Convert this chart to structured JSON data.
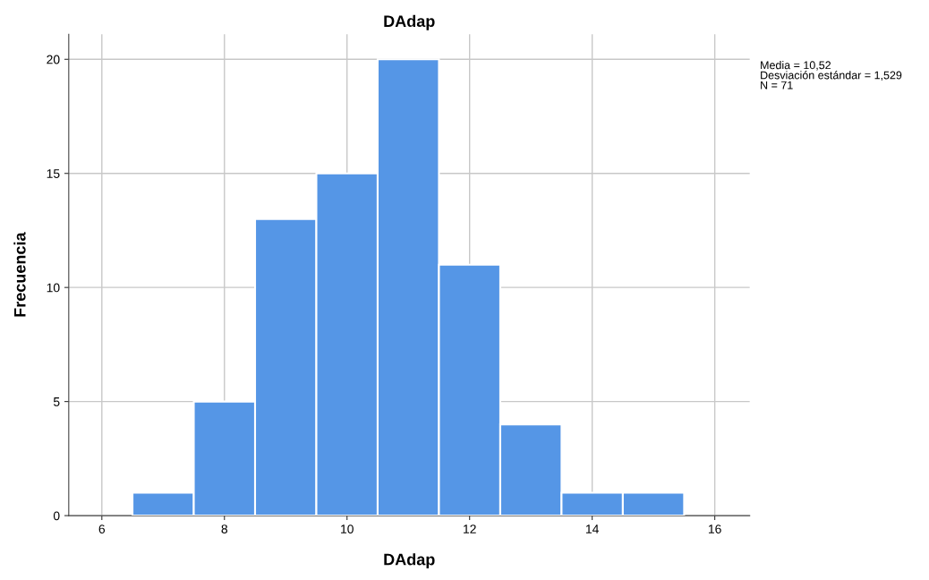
{
  "chart_data": {
    "type": "histogram",
    "title": "DAdap",
    "xlabel": "DAdap",
    "ylabel": "Frecuencia",
    "bins": [
      6.5,
      7.5,
      8.5,
      9.5,
      10.5,
      11.5,
      12.5,
      13.5,
      14.5,
      15.5
    ],
    "values": [
      1,
      5,
      13,
      15,
      20,
      11,
      4,
      1,
      1
    ],
    "color": "#5596e6",
    "xlim": [
      5.46,
      16.57
    ],
    "xticks": [
      6,
      8,
      10,
      12,
      14,
      16
    ],
    "ylim": [
      0,
      21.1
    ],
    "yticks": [
      0,
      5,
      10,
      15,
      20
    ],
    "grid": true,
    "annotations": [
      "Media = 10,52\nDesviación estándar = 1,529\nN = 71"
    ]
  }
}
